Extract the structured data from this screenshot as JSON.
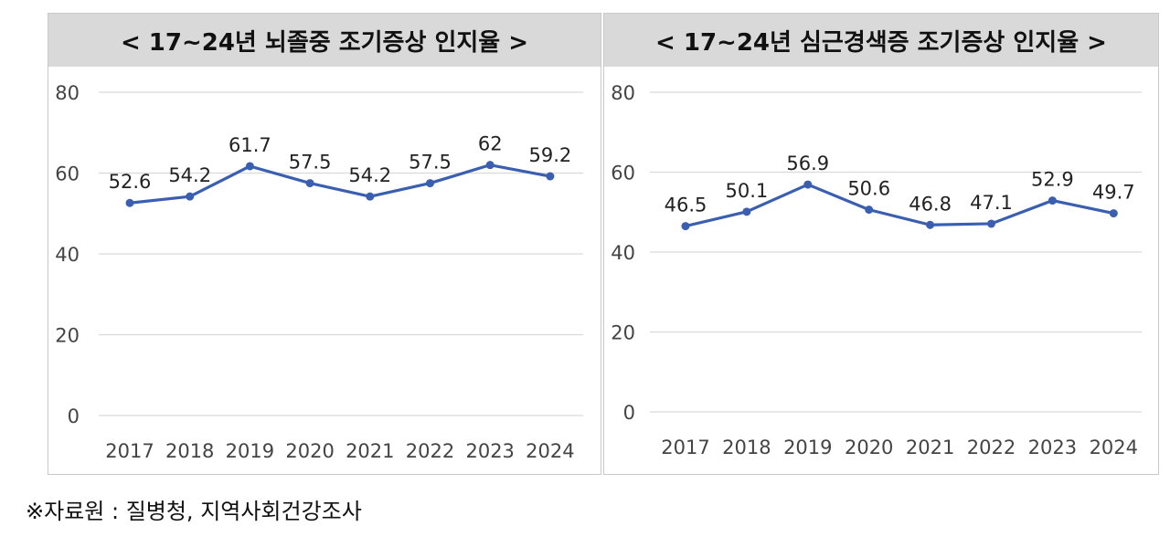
{
  "source_note": "※자료원 : 질병청, 지역사회건강조사",
  "chart_data": [
    {
      "type": "line",
      "title": "< 17~24년 뇌졸중 조기증상 인지율 >",
      "categories": [
        "2017",
        "2018",
        "2019",
        "2020",
        "2021",
        "2022",
        "2023",
        "2024"
      ],
      "values": [
        52.6,
        54.2,
        61.7,
        57.5,
        54.2,
        57.5,
        62,
        59.2
      ],
      "labels": [
        "52.6",
        "54.2",
        "61.7",
        "57.5",
        "54.2",
        "57.5",
        "62",
        "59.2"
      ],
      "ylim": [
        0,
        80
      ],
      "yticks": [
        "0",
        "20",
        "40",
        "60",
        "80"
      ],
      "grid": true,
      "color": "#3a5fb0"
    },
    {
      "type": "line",
      "title": "< 17~24년 심근경색증 조기증상 인지율 >",
      "categories": [
        "2017",
        "2018",
        "2019",
        "2020",
        "2021",
        "2022",
        "2023",
        "2024"
      ],
      "values": [
        46.5,
        50.1,
        56.9,
        50.6,
        46.8,
        47.1,
        52.9,
        49.7
      ],
      "labels": [
        "46.5",
        "50.1",
        "56.9",
        "50.6",
        "46.8",
        "47.1",
        "52.9",
        "49.7"
      ],
      "ylim": [
        0,
        80
      ],
      "yticks": [
        "0",
        "20",
        "40",
        "60",
        "80"
      ],
      "grid": true,
      "color": "#3a5fb0"
    }
  ]
}
